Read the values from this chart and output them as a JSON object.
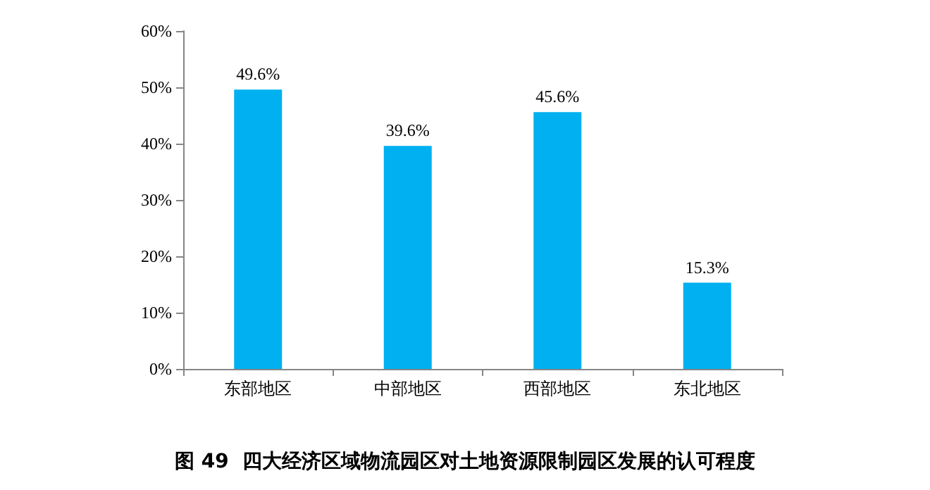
{
  "chart_data": {
    "type": "bar",
    "title": "图 49  四大经济区域物流园区对土地资源限制园区发展的认可程度",
    "categories": [
      "东部地区",
      "中部地区",
      "西部地区",
      "东北地区"
    ],
    "values": [
      49.6,
      39.6,
      45.6,
      15.3
    ],
    "value_labels": [
      "49.6%",
      "39.6%",
      "45.6%",
      "15.3%"
    ],
    "color": "#00b0f0",
    "ylim": [
      0,
      60
    ],
    "yticks": [
      {
        "value": 0,
        "label": "0%"
      },
      {
        "value": 10,
        "label": "10%"
      },
      {
        "value": 20,
        "label": "20%"
      },
      {
        "value": 30,
        "label": "30%"
      },
      {
        "value": 40,
        "label": "40%"
      },
      {
        "value": 50,
        "label": "50%"
      },
      {
        "value": 60,
        "label": "60%"
      }
    ],
    "grid": false
  }
}
